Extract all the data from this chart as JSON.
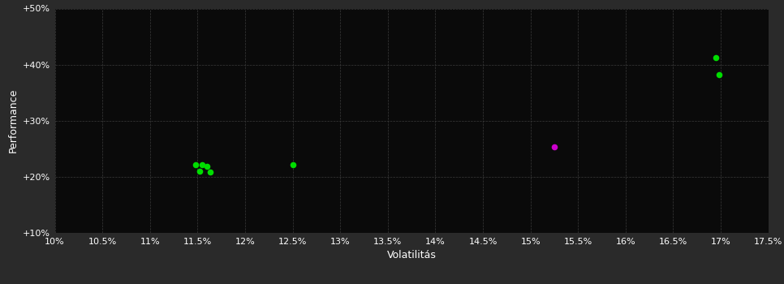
{
  "bg_outer": "#2a2a2a",
  "bg_inner": "#0a0a0a",
  "grid_color": "#3a3a3a",
  "text_color": "#ffffff",
  "xlabel": "Volatilitás",
  "ylabel": "Performance",
  "xlim": [
    0.1,
    0.175
  ],
  "ylim": [
    0.1,
    0.5
  ],
  "xticks": [
    0.1,
    0.105,
    0.11,
    0.115,
    0.12,
    0.125,
    0.13,
    0.135,
    0.14,
    0.145,
    0.15,
    0.155,
    0.16,
    0.165,
    0.17,
    0.175
  ],
  "yticks": [
    0.1,
    0.2,
    0.3,
    0.4,
    0.5
  ],
  "ytick_labels": [
    "+10%",
    "+20%",
    "+30%",
    "+40%",
    "+50%"
  ],
  "xtick_labels": [
    "10%",
    "10.5%",
    "11%",
    "11.5%",
    "12%",
    "12.5%",
    "13%",
    "13.5%",
    "14%",
    "14.5%",
    "15%",
    "15.5%",
    "16%",
    "16.5%",
    "17%",
    "17.5%"
  ],
  "green_points": [
    [
      0.1148,
      0.222
    ],
    [
      0.1155,
      0.221
    ],
    [
      0.116,
      0.218
    ],
    [
      0.1152,
      0.21
    ],
    [
      0.1163,
      0.209
    ],
    [
      0.125,
      0.222
    ],
    [
      0.1695,
      0.413
    ],
    [
      0.1698,
      0.382
    ]
  ],
  "magenta_points": [
    [
      0.1525,
      0.253
    ]
  ],
  "point_size": 30,
  "green_color": "#00dd00",
  "magenta_color": "#cc00cc",
  "tick_fontsize": 8,
  "label_fontsize": 9
}
